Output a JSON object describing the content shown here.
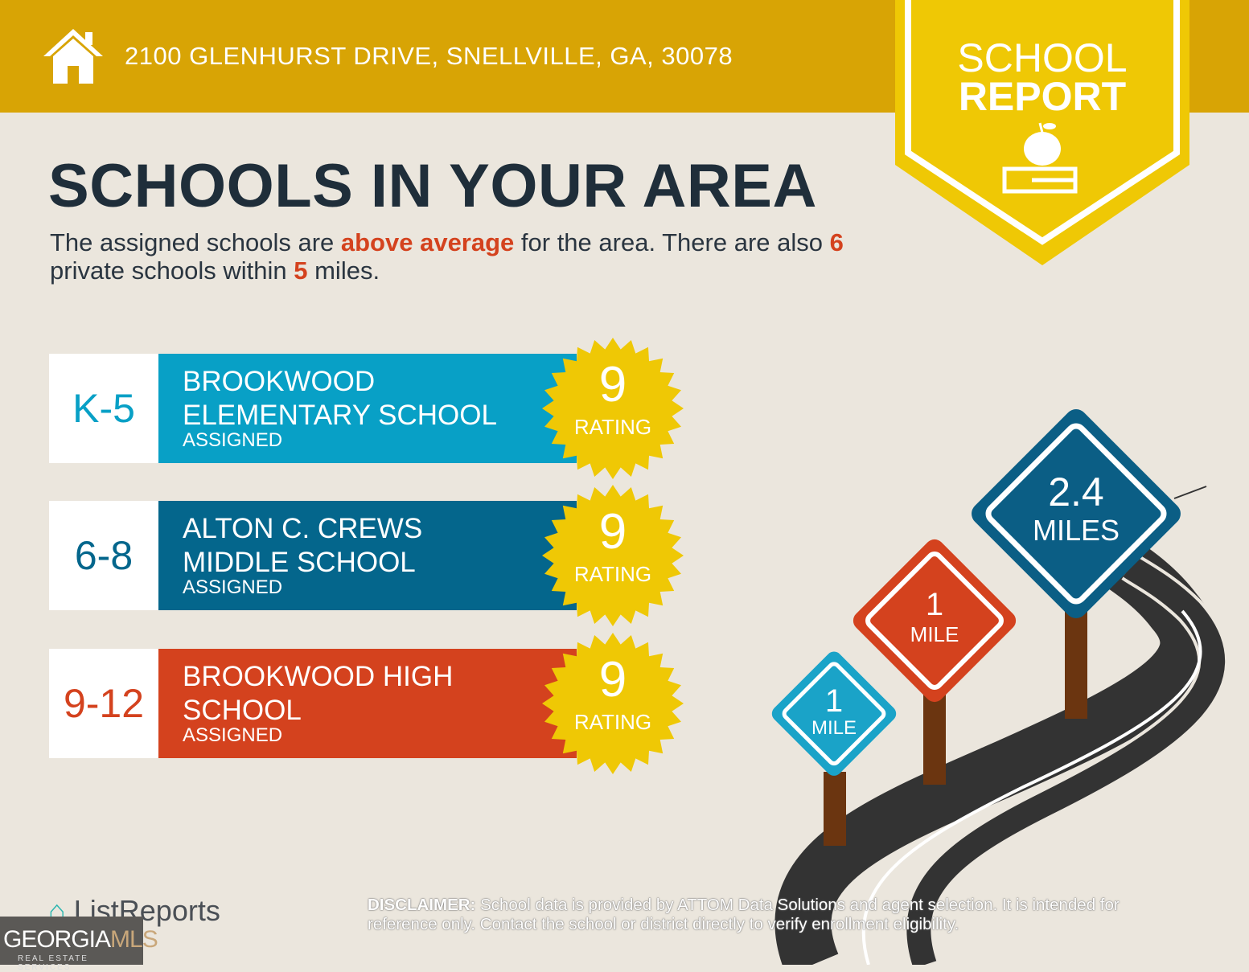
{
  "header": {
    "address": "2100 GLENHURST DRIVE, SNELLVILLE, GA, 30078",
    "icon": "home-icon",
    "color": "#d8a405"
  },
  "banner": {
    "line1": "SCHOOL",
    "line2": "REPORT",
    "icon": "apple-on-book-icon",
    "color": "#efc805"
  },
  "title": "SCHOOLS IN YOUR AREA",
  "subtitle": {
    "p1": "The assigned schools are ",
    "h1": "above average",
    "p2": " for the area. There are also ",
    "h2": "6",
    "p3": " private schools within ",
    "h3": "5",
    "p4": " miles."
  },
  "schools": [
    {
      "grades": "K-5",
      "name": "BROOKWOOD ELEMENTARY SCHOOL",
      "status": "ASSIGNED",
      "rating": "9",
      "rating_label": "RATING",
      "color": "#08a0c6"
    },
    {
      "grades": "6-8",
      "name": "ALTON C. CREWS MIDDLE SCHOOL",
      "status": "ASSIGNED",
      "rating": "9",
      "rating_label": "RATING",
      "color": "#04668c"
    },
    {
      "grades": "9-12",
      "name": "BROOKWOOD HIGH SCHOOL",
      "status": "ASSIGNED",
      "rating": "9",
      "rating_label": "RATING",
      "color": "#d4421e"
    }
  ],
  "signs": [
    {
      "value": "1",
      "unit": "MILE",
      "color": "#1aa3c8"
    },
    {
      "value": "1",
      "unit": "MILE",
      "color": "#d4421e"
    },
    {
      "value": "2.4",
      "unit": "MILES",
      "color": "#0b5e85"
    }
  ],
  "footer": {
    "logo": "ListReports",
    "mls_a": "GEORGIA",
    "mls_b": "MLS",
    "mls_sub": "REAL ESTATE SERVICES",
    "disclaimer_label": "DISCLAIMER:",
    "disclaimer": " School data is provided by ATTOM Data Solutions and agent selection. It is intended for reference only. Contact the school or district directly to verify enrollment eligibility."
  }
}
